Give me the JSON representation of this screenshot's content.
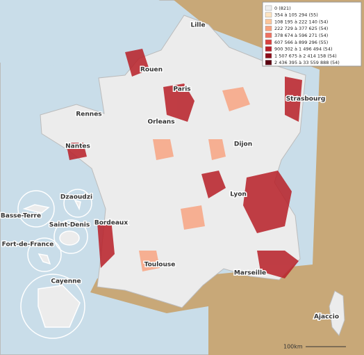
{
  "legend": {
    "items": [
      {
        "label": "0 (821)",
        "color": "#eeeeee"
      },
      {
        "label": "354 à 105 294 (55)",
        "color": "#fde3bf"
      },
      {
        "label": "108 195 à 222 140 (54)",
        "color": "#fcc59a"
      },
      {
        "label": "222 729 à 377 625 (54)",
        "color": "#f9a07c"
      },
      {
        "label": "378 674 à 596 271 (54)",
        "color": "#ef7060"
      },
      {
        "label": "607 566 à 899 296 (55)",
        "color": "#d9413e"
      },
      {
        "label": "900 302 à 1 496 494 (54)",
        "color": "#b81f27"
      },
      {
        "label": "1 507 675 à 2 414 158 (54)",
        "color": "#8c0d1a"
      },
      {
        "label": "2 436 395 à 33 559 888 (54)",
        "color": "#5c0010"
      }
    ]
  },
  "cities": [
    "Lille",
    "Rouen",
    "Paris",
    "Strasbourg",
    "Rennes",
    "Orleans",
    "Nantes",
    "Dijon",
    "Lyon",
    "Dzaoudzi",
    "Basse-Terre",
    "Saint-Denis",
    "Bordeaux",
    "Fort-de-France",
    "Toulouse",
    "Marseille",
    "Cayenne",
    "Ajaccio"
  ],
  "scale": "100km"
}
